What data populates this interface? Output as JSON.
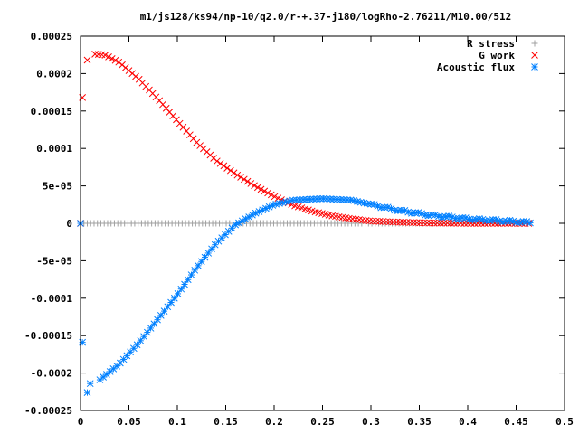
{
  "chart_data": {
    "type": "scatter",
    "title": "m1/js128/ks94/np-10/q2.0/r-+.37-j180/logRho-2.76211/M10.00/512",
    "xlabel": "",
    "ylabel": "",
    "xlim": [
      0,
      0.5
    ],
    "ylim": [
      -0.00025,
      0.00025
    ],
    "x_ticks": [
      0,
      0.05,
      0.1,
      0.15,
      0.2,
      0.25,
      0.3,
      0.35,
      0.4,
      0.45,
      0.5
    ],
    "x_tick_labels": [
      "0",
      "0.05",
      "0.1",
      "0.15",
      "0.2",
      "0.25",
      "0.3",
      "0.35",
      "0.4",
      "0.45",
      "0.5"
    ],
    "y_ticks": [
      -0.00025,
      -0.0002,
      -0.00015,
      -0.0001,
      -5e-05,
      0,
      5e-05,
      0.0001,
      0.00015,
      0.0002,
      0.00025
    ],
    "y_tick_labels": [
      "-0.00025",
      "-0.0002",
      "-0.00015",
      "-0.0001",
      "-5e-05",
      "0",
      "5e-05",
      "0.0001",
      "0.00015",
      "0.0002",
      "0.00025"
    ],
    "grid": false,
    "legend_position": "top-right",
    "series": [
      {
        "name": "R stress",
        "color": "#a0a0a0",
        "marker": "plus",
        "points": [
          [
            0.0,
            0
          ],
          [
            0.05,
            0
          ],
          [
            0.1,
            0
          ],
          [
            0.15,
            0
          ],
          [
            0.2,
            0
          ],
          [
            0.25,
            0
          ],
          [
            0.3,
            0
          ],
          [
            0.35,
            0
          ],
          [
            0.4,
            0
          ],
          [
            0.45,
            0
          ],
          [
            0.465,
            0
          ]
        ]
      },
      {
        "name": "G work",
        "color": "#ff0000",
        "marker": "cross",
        "points": [
          [
            0.0,
            0
          ],
          [
            0.002,
            0.000168
          ],
          [
            0.007,
            0.000218
          ],
          [
            0.015,
            0.000226
          ],
          [
            0.025,
            0.000225
          ],
          [
            0.04,
            0.000215
          ],
          [
            0.06,
            0.000193
          ],
          [
            0.08,
            0.000166
          ],
          [
            0.1,
            0.000137
          ],
          [
            0.12,
            0.000108
          ],
          [
            0.14,
            8.4e-05
          ],
          [
            0.16,
            6.6e-05
          ],
          [
            0.18,
            5e-05
          ],
          [
            0.2,
            3.6e-05
          ],
          [
            0.22,
            2.4e-05
          ],
          [
            0.24,
            1.6e-05
          ],
          [
            0.26,
            1e-05
          ],
          [
            0.28,
            6e-06
          ],
          [
            0.3,
            3e-06
          ],
          [
            0.33,
            1.5e-06
          ],
          [
            0.36,
            5e-07
          ],
          [
            0.4,
            0
          ],
          [
            0.44,
            0
          ],
          [
            0.465,
            0
          ]
        ]
      },
      {
        "name": "Acoustic flux",
        "color": "#0080ff",
        "marker": "star",
        "points": [
          [
            0.0,
            0
          ],
          [
            0.002,
            -0.000159
          ],
          [
            0.007,
            -0.000226
          ],
          [
            0.01,
            -0.000214
          ],
          [
            0.02,
            -0.000209
          ],
          [
            0.04,
            -0.000188
          ],
          [
            0.06,
            -0.00016
          ],
          [
            0.08,
            -0.000128
          ],
          [
            0.1,
            -9.5e-05
          ],
          [
            0.12,
            -5.9e-05
          ],
          [
            0.14,
            -2.7e-05
          ],
          [
            0.16,
            -2e-06
          ],
          [
            0.18,
            1.3e-05
          ],
          [
            0.2,
            2.5e-05
          ],
          [
            0.22,
            3.1e-05
          ],
          [
            0.25,
            3.3e-05
          ],
          [
            0.28,
            3.1e-05
          ],
          [
            0.3,
            2.5e-05
          ],
          [
            0.33,
            1.7e-05
          ],
          [
            0.36,
            1.1e-05
          ],
          [
            0.4,
            6e-06
          ],
          [
            0.44,
            3e-06
          ],
          [
            0.465,
            1e-06
          ]
        ]
      }
    ]
  }
}
